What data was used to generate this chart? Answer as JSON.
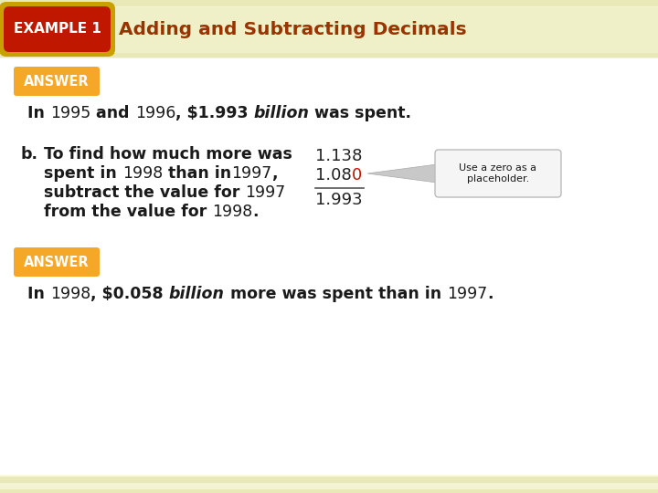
{
  "bg_color": "#fafadc",
  "header_bg": "#f0f0c8",
  "stripe_colors": [
    "#e8e8b8",
    "#f4f4d4"
  ],
  "example_badge_bg": "#c01800",
  "example_badge_text": "EXAMPLE 1",
  "example_badge_text_color": "#ffffff",
  "header_title": "Adding and Subtracting Decimals",
  "header_title_color": "#993300",
  "answer_badge_bg": "#f5a828",
  "answer_badge_border": "#e09000",
  "answer_badge_text": "ANSWER",
  "answer_badge_text_color": "#ffffff",
  "dark_color": "#1a1a1a",
  "red_color": "#cc1100",
  "calc_color": "#222222",
  "note_bg": "#f5f5f5",
  "note_border": "#bbbbbb",
  "note_text": "Use a zero as a\nplaceholder.",
  "white": "#ffffff",
  "line_color": "#555555"
}
